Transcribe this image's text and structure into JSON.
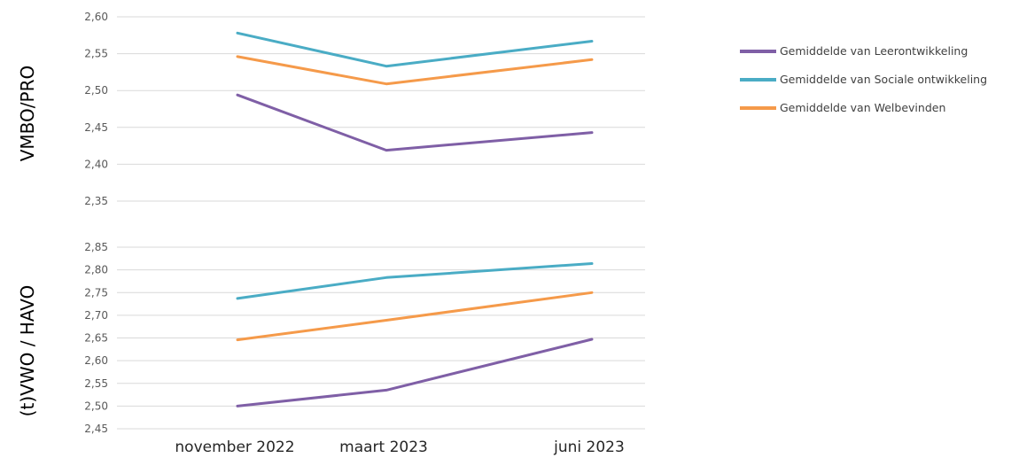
{
  "chart_data": [
    {
      "type": "line",
      "title": "",
      "row_label": "VMBO/PRO",
      "categories": [
        "november 2022",
        "maart 2023",
        "juni 2023"
      ],
      "ylim": [
        2.35,
        2.6
      ],
      "yticks": [
        "2,35",
        "2,40",
        "2,45",
        "2,50",
        "2,55",
        "2,60"
      ],
      "grid": true,
      "legend": "right",
      "series": [
        {
          "name": "Gemiddelde van Leerontwikkeling",
          "color": "#7f5fa6",
          "values": [
            2.494,
            2.419,
            2.443
          ]
        },
        {
          "name": "Gemiddelde van Sociale ontwikkeling",
          "color": "#4aacc5",
          "values": [
            2.578,
            2.533,
            2.567
          ]
        },
        {
          "name": "Gemiddelde van Welbevinden",
          "color": "#f59a4a",
          "values": [
            2.546,
            2.509,
            2.542
          ]
        }
      ]
    },
    {
      "type": "line",
      "title": "",
      "row_label": "(t)VWO / HAVO",
      "categories": [
        "november 2022",
        "maart 2023",
        "juni 2023"
      ],
      "ylim": [
        2.45,
        2.85
      ],
      "yticks": [
        "2,45",
        "2,50",
        "2,55",
        "2,60",
        "2,65",
        "2,70",
        "2,75",
        "2,80",
        "2,85"
      ],
      "grid": true,
      "series": [
        {
          "name": "Gemiddelde van Leerontwikkeling",
          "color": "#7f5fa6",
          "values": [
            2.5,
            2.535,
            2.647
          ]
        },
        {
          "name": "Gemiddelde van Sociale ontwikkeling",
          "color": "#4aacc5",
          "values": [
            2.737,
            2.783,
            2.814
          ]
        },
        {
          "name": "Gemiddelde van Welbevinden",
          "color": "#f59a4a",
          "values": [
            2.646,
            2.689,
            2.75
          ]
        }
      ]
    }
  ]
}
